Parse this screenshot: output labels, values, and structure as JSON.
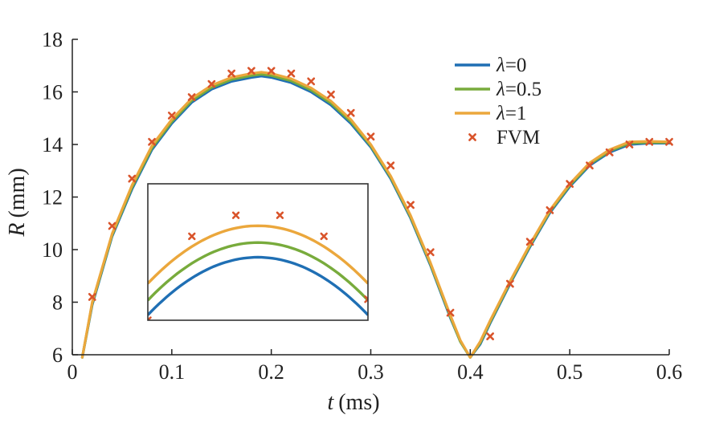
{
  "chart_data": {
    "type": "line",
    "title": "",
    "xlabel": {
      "symbol": "t",
      "unit": "(ms)"
    },
    "ylabel": {
      "symbol": "R",
      "unit": "(mm)"
    },
    "xlim": [
      0,
      0.6
    ],
    "ylim": [
      6,
      18
    ],
    "xticks": [
      0,
      0.1,
      0.2,
      0.3,
      0.4,
      0.5,
      0.6
    ],
    "xtick_labels": [
      "0",
      "0.1",
      "0.2",
      "0.3",
      "0.4",
      "0.5",
      "0.6"
    ],
    "yticks": [
      6,
      8,
      10,
      12,
      14,
      16,
      18
    ],
    "ytick_labels": [
      "6",
      "8",
      "10",
      "12",
      "14",
      "16",
      "18"
    ],
    "grid": false,
    "legend_position": "top-right",
    "series": [
      {
        "name": "λ=0",
        "legend_symbol": "λ",
        "legend_value": "=0",
        "kind": "line",
        "color": "#1f6fb4",
        "x": [
          0.01,
          0.02,
          0.04,
          0.06,
          0.08,
          0.1,
          0.12,
          0.14,
          0.16,
          0.18,
          0.19,
          0.2,
          0.22,
          0.24,
          0.26,
          0.28,
          0.3,
          0.32,
          0.34,
          0.36,
          0.38,
          0.39,
          0.4,
          0.41,
          0.42,
          0.44,
          0.46,
          0.48,
          0.5,
          0.52,
          0.54,
          0.56,
          0.58,
          0.6
        ],
        "y": [
          5.9,
          7.9,
          10.5,
          12.3,
          13.8,
          14.8,
          15.6,
          16.1,
          16.4,
          16.55,
          16.6,
          16.55,
          16.35,
          16.0,
          15.5,
          14.8,
          13.9,
          12.7,
          11.2,
          9.4,
          7.4,
          6.5,
          5.9,
          6.4,
          7.2,
          8.7,
          10.1,
          11.4,
          12.4,
          13.2,
          13.7,
          14.0,
          14.05,
          14.05
        ]
      },
      {
        "name": "λ=0.5",
        "legend_symbol": "λ",
        "legend_value": "=0.5",
        "kind": "line",
        "color": "#78ab3c",
        "x": [
          0.01,
          0.02,
          0.04,
          0.06,
          0.08,
          0.1,
          0.12,
          0.14,
          0.16,
          0.18,
          0.19,
          0.2,
          0.22,
          0.24,
          0.26,
          0.28,
          0.3,
          0.32,
          0.34,
          0.36,
          0.38,
          0.39,
          0.4,
          0.41,
          0.42,
          0.44,
          0.46,
          0.48,
          0.5,
          0.52,
          0.54,
          0.56,
          0.58,
          0.6
        ],
        "y": [
          5.9,
          7.95,
          10.55,
          12.37,
          13.87,
          14.87,
          15.67,
          16.17,
          16.47,
          16.62,
          16.67,
          16.62,
          16.42,
          16.07,
          15.57,
          14.87,
          13.95,
          12.75,
          11.25,
          9.45,
          7.45,
          6.5,
          5.9,
          6.45,
          7.25,
          8.75,
          10.15,
          11.45,
          12.45,
          13.25,
          13.75,
          14.05,
          14.08,
          14.07
        ]
      },
      {
        "name": "λ=1",
        "legend_symbol": "λ",
        "legend_value": "=1",
        "kind": "line",
        "color": "#eba73c",
        "x": [
          0.01,
          0.02,
          0.04,
          0.06,
          0.08,
          0.1,
          0.12,
          0.14,
          0.16,
          0.18,
          0.19,
          0.2,
          0.22,
          0.24,
          0.26,
          0.28,
          0.3,
          0.32,
          0.34,
          0.36,
          0.38,
          0.39,
          0.4,
          0.41,
          0.42,
          0.44,
          0.46,
          0.48,
          0.5,
          0.52,
          0.54,
          0.56,
          0.58,
          0.6
        ],
        "y": [
          5.9,
          8.0,
          10.6,
          12.45,
          13.95,
          14.95,
          15.75,
          16.25,
          16.55,
          16.7,
          16.75,
          16.7,
          16.5,
          16.15,
          15.65,
          14.95,
          14.0,
          12.8,
          11.3,
          9.5,
          7.5,
          6.55,
          5.9,
          6.5,
          7.3,
          8.8,
          10.2,
          11.5,
          12.5,
          13.3,
          13.8,
          14.1,
          14.12,
          14.1
        ]
      },
      {
        "name": "FVM",
        "legend_symbol": "",
        "legend_value": "FVM",
        "kind": "marker",
        "color": "#d9542b",
        "x": [
          0.02,
          0.04,
          0.06,
          0.08,
          0.1,
          0.12,
          0.14,
          0.16,
          0.18,
          0.2,
          0.22,
          0.24,
          0.26,
          0.28,
          0.3,
          0.32,
          0.34,
          0.36,
          0.38,
          0.42,
          0.44,
          0.46,
          0.48,
          0.5,
          0.52,
          0.54,
          0.56,
          0.58,
          0.6
        ],
        "y": [
          8.2,
          10.9,
          12.7,
          14.1,
          15.1,
          15.8,
          16.3,
          16.7,
          16.8,
          16.8,
          16.7,
          16.4,
          15.9,
          15.2,
          14.3,
          13.2,
          11.7,
          9.9,
          7.6,
          6.7,
          8.7,
          10.3,
          11.5,
          12.5,
          13.2,
          13.7,
          14.0,
          14.1,
          14.1
        ]
      }
    ],
    "inset": {
      "border_color": "#333333",
      "xlim": [
        0.14,
        0.24
      ],
      "ylim": [
        16.3,
        16.95
      ],
      "note": "magnified view around the first peak, no tick labels"
    }
  }
}
